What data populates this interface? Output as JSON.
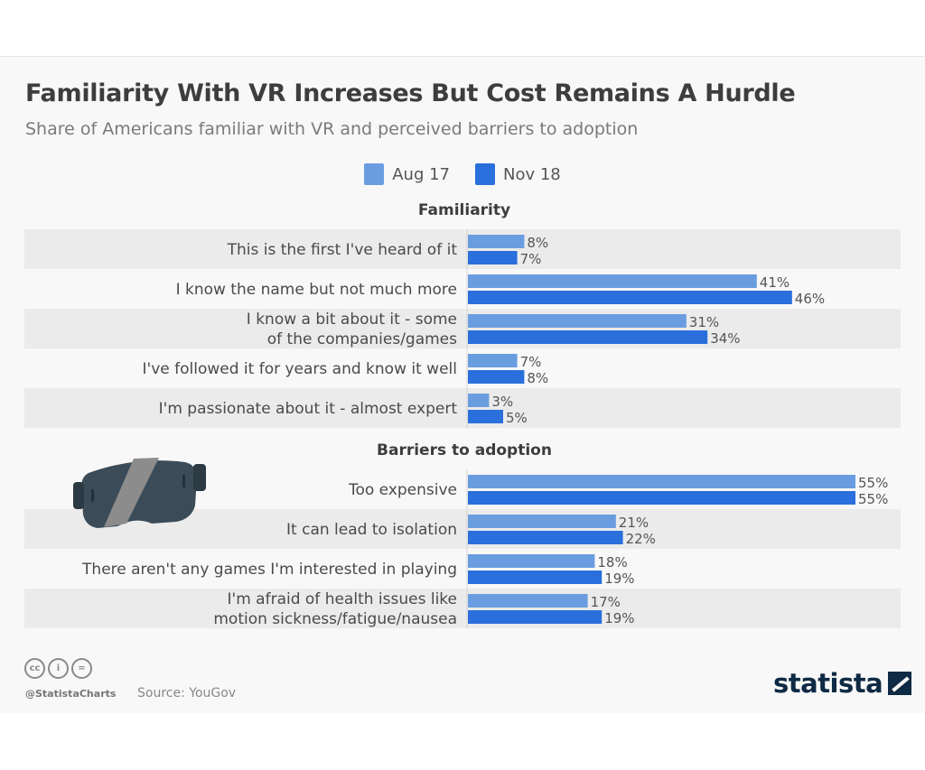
{
  "chart_data": {
    "type": "bar",
    "orientation": "horizontal",
    "title": "Familiarity With VR Increases But Cost Remains A Hurdle",
    "subtitle": "Share of Americans familiar with VR and perceived barriers to adoption",
    "legend": [
      {
        "name": "Aug 17",
        "color": "#6a9de0"
      },
      {
        "name": "Nov 18",
        "color": "#2a6fdb"
      }
    ],
    "legend_position": "top-center",
    "value_suffix": "%",
    "xlim": [
      0,
      55
    ],
    "grid": false,
    "sections": [
      {
        "title": "Familiarity",
        "categories": [
          [
            "This is the first I've heard of it"
          ],
          [
            "I know the name but not much more"
          ],
          [
            "I know a bit about it - some",
            "of the companies/games"
          ],
          [
            "I've followed it for years and know it well"
          ],
          [
            "I'm passionate about it - almost expert"
          ]
        ],
        "series": [
          {
            "name": "Aug 17",
            "values": [
              8,
              41,
              31,
              7,
              3
            ]
          },
          {
            "name": "Nov 18",
            "values": [
              7,
              46,
              34,
              8,
              5
            ]
          }
        ]
      },
      {
        "title": "Barriers to adoption",
        "categories": [
          [
            "Too expensive"
          ],
          [
            "It can lead to isolation"
          ],
          [
            "There aren't any games I'm interested in playing"
          ],
          [
            "I'm afraid of health issues like",
            "motion sickness/fatigue/nausea"
          ]
        ],
        "series": [
          {
            "name": "Aug 17",
            "values": [
              55,
              21,
              18,
              17
            ]
          },
          {
            "name": "Nov 18",
            "values": [
              55,
              22,
              19,
              19
            ]
          }
        ]
      }
    ]
  },
  "footer": {
    "handle": "@StatistaCharts",
    "source": "Source: YouGov",
    "license_icons": [
      "cc-icon",
      "by-icon",
      "nd-icon"
    ],
    "license_glyphs": [
      "cc",
      "i",
      "="
    ],
    "brand": "statista"
  },
  "illustration": "vr-headset-icon"
}
